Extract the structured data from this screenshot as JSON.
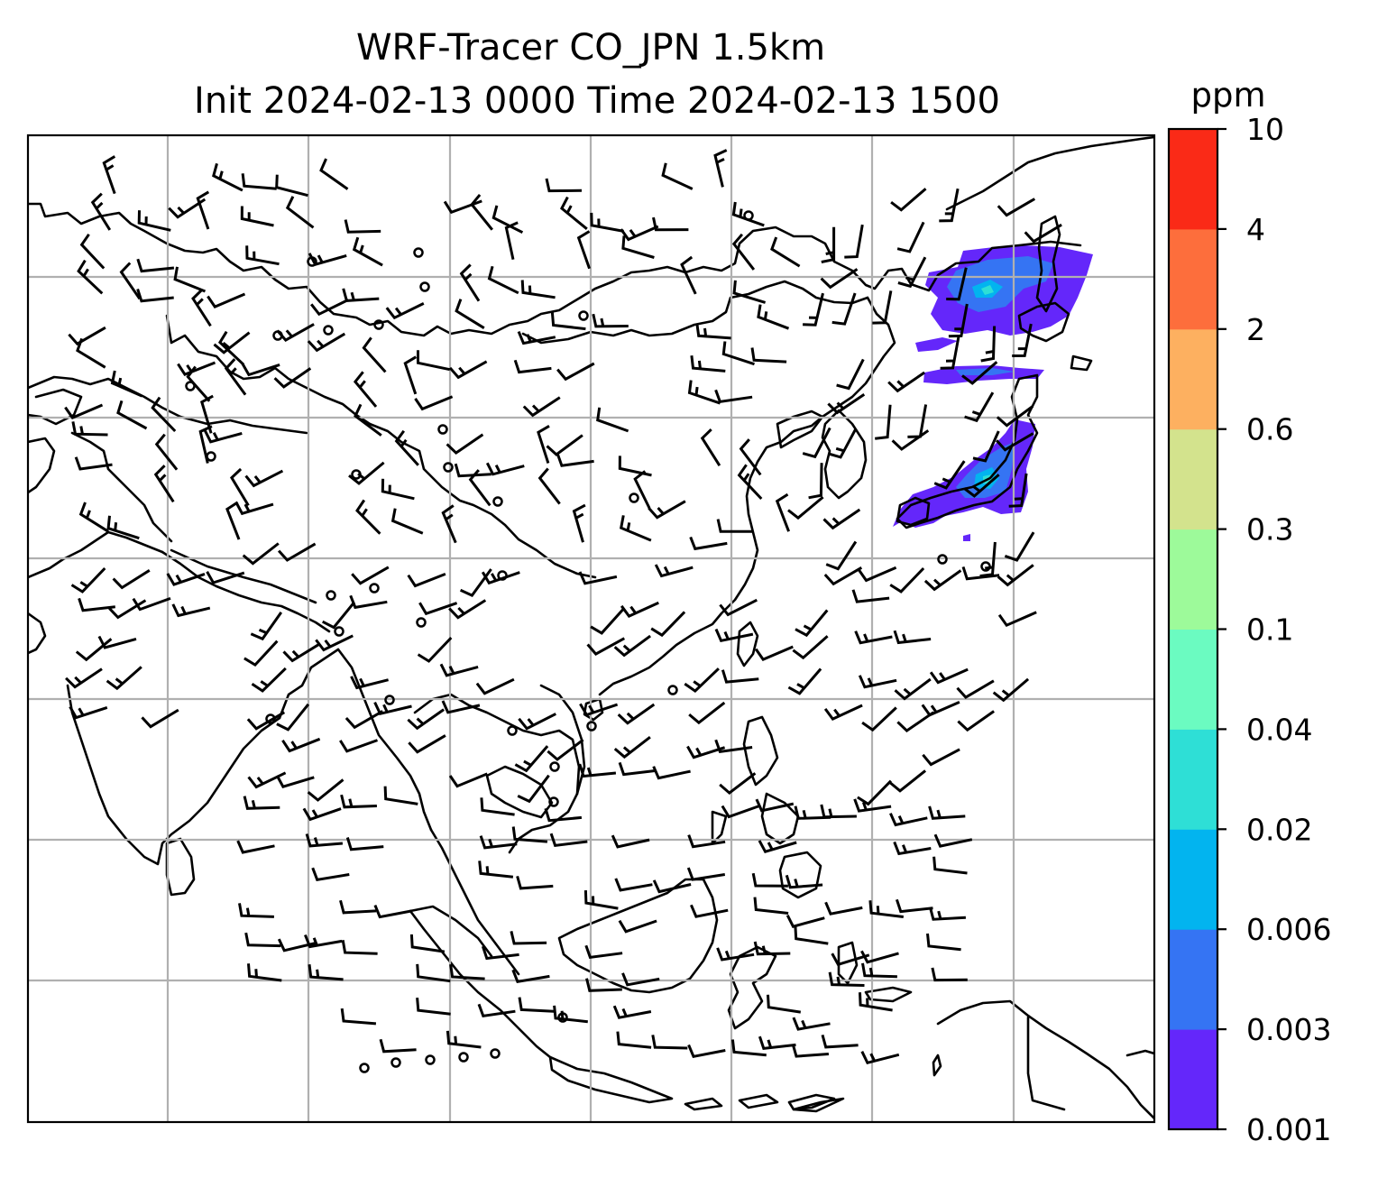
{
  "title_line1": "WRF-Tracer CO_JPN 1.5km",
  "title_line2": "Init 2024-02-13 0000 Time 2024-02-13 1500",
  "colorbar": {
    "unit": "ppm",
    "levels": [
      "0.001",
      "0.003",
      "0.006",
      "0.02",
      "0.04",
      "0.1",
      "0.3",
      "0.6",
      "2",
      "4",
      "10"
    ],
    "colors": [
      "#6427fa",
      "#3574f3",
      "#02b4ef",
      "#2edfd6",
      "#6bfbc1",
      "#9dfa9a",
      "#d3e38d",
      "#fdb060",
      "#fd6e3c",
      "#fa2a17"
    ]
  },
  "map": {
    "land_line_color": "#000000",
    "grid_color": "#b0b0b0",
    "plume_colors": [
      "#6427fa",
      "#3574f3",
      "#02b4ef",
      "#2edfd6"
    ]
  }
}
